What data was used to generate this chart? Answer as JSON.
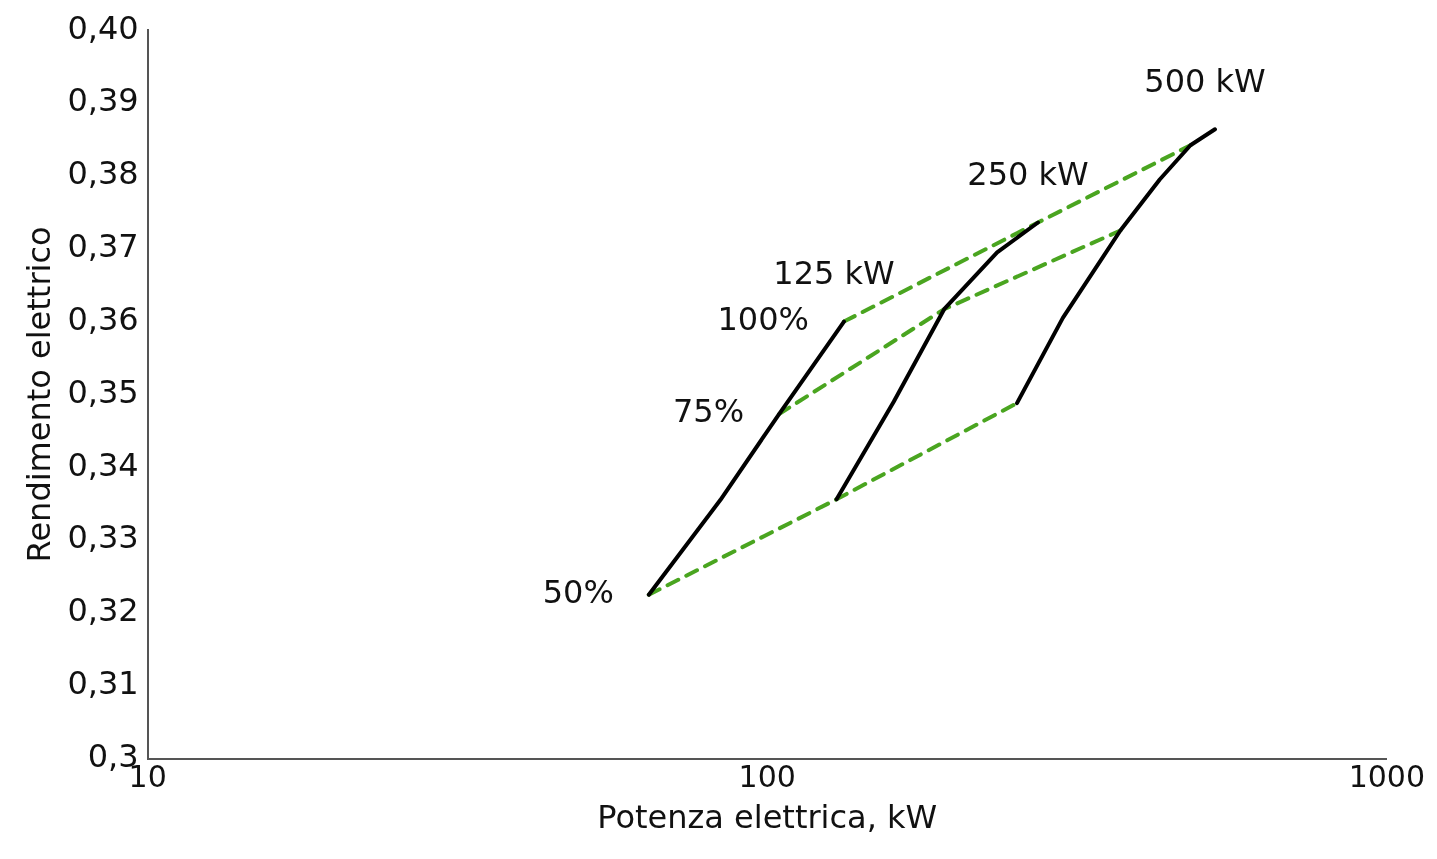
{
  "chart_data": {
    "type": "line",
    "xlabel": "Potenza elettrica, kW",
    "ylabel": "Rendimento elettrico",
    "log": "x",
    "grid": false,
    "legend": false,
    "marker": "none",
    "xlim": [
      10,
      1000
    ],
    "xticks": [
      10,
      100,
      1000
    ],
    "ylim": [
      0.3,
      0.4
    ],
    "yticks": [
      {
        "value": 0.3,
        "label": "0,3"
      },
      {
        "value": 0.31,
        "label": "0,31"
      },
      {
        "value": 0.32,
        "label": "0,32"
      },
      {
        "value": 0.33,
        "label": "0,33"
      },
      {
        "value": 0.34,
        "label": "0,34"
      },
      {
        "value": 0.35,
        "label": "0,35"
      },
      {
        "value": 0.36,
        "label": "0,36"
      },
      {
        "value": 0.37,
        "label": "0,37"
      },
      {
        "value": 0.38,
        "label": "0,38"
      },
      {
        "value": 0.39,
        "label": "0,39"
      },
      {
        "value": 0.4,
        "label": "0,40"
      }
    ],
    "series": [
      {
        "name": "125 kW",
        "color": "#000000",
        "line_style": "solid",
        "x": [
          64.4,
          84,
          104.5,
          133
        ],
        "values": [
          0.3225,
          0.3355,
          0.3473,
          0.36
        ]
      },
      {
        "name": "250 kW",
        "color": "#000000",
        "line_style": "solid",
        "x": [
          129.4,
          160,
          193,
          235,
          273.5
        ],
        "values": [
          0.3356,
          0.349,
          0.3617,
          0.3695,
          0.3736
        ]
      },
      {
        "name": "500 kW",
        "color": "#000000",
        "line_style": "solid",
        "x": [
          253,
          300,
          371.5,
          430,
          482,
          528
        ],
        "values": [
          0.3488,
          0.3605,
          0.3725,
          0.3795,
          0.3842,
          0.3864
        ]
      },
      {
        "name": "100%",
        "color": "#4aa520",
        "line_style": "dashed",
        "x": [
          133,
          273.5,
          482
        ],
        "values": [
          0.36,
          0.3736,
          0.3842
        ]
      },
      {
        "name": "75%",
        "color": "#4aa520",
        "line_style": "dashed",
        "x": [
          104.5,
          193,
          371.5
        ],
        "values": [
          0.3473,
          0.3617,
          0.3725
        ]
      },
      {
        "name": "50%",
        "color": "#4aa520",
        "line_style": "dashed",
        "x": [
          64.4,
          129.4,
          253
        ],
        "values": [
          0.3225,
          0.3356,
          0.3488
        ]
      }
    ]
  }
}
